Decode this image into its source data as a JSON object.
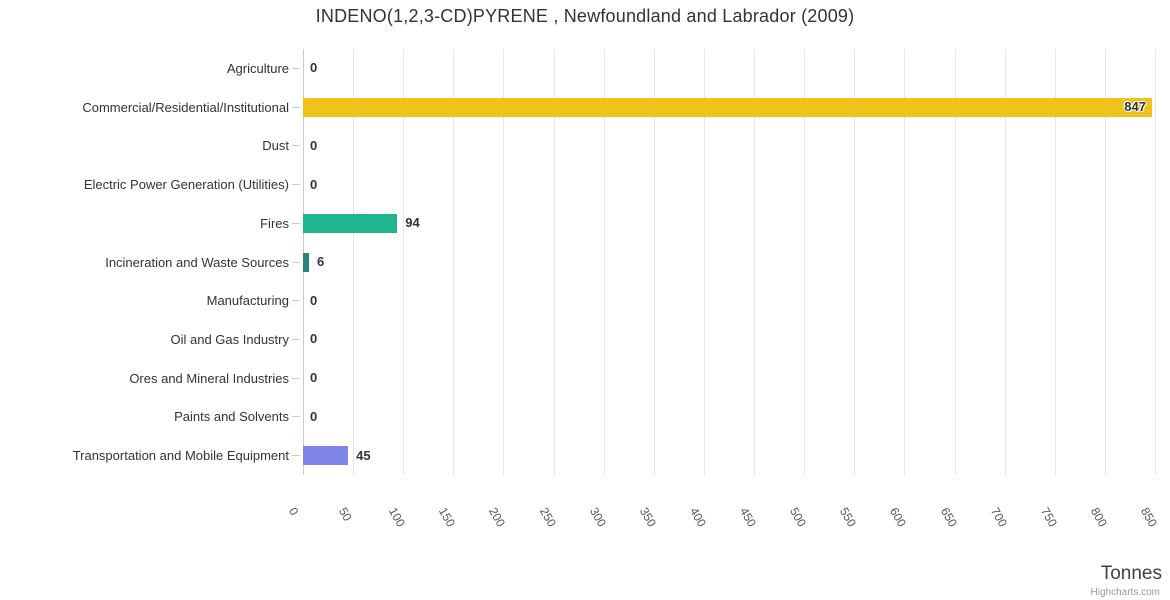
{
  "credits": "Highcharts.com",
  "chart_data": {
    "type": "bar",
    "orientation": "horizontal",
    "title": "INDENO(1,2,3-CD)PYRENE , Newfoundland and Labrador (2009)",
    "xlabel": "Tonnes",
    "xlim": [
      0,
      850
    ],
    "x_ticks": [
      0,
      50,
      100,
      150,
      200,
      250,
      300,
      350,
      400,
      450,
      500,
      550,
      600,
      650,
      700,
      750,
      800,
      850
    ],
    "grid": true,
    "legend": false,
    "categories": [
      "Agriculture",
      "Commercial/Residential/Institutional",
      "Dust",
      "Electric Power Generation (Utilities)",
      "Fires",
      "Incineration and Waste Sources",
      "Manufacturing",
      "Oil and Gas Industry",
      "Ores and Mineral Industries",
      "Paints and Solvents",
      "Transportation and Mobile Equipment"
    ],
    "values": [
      0,
      847,
      0,
      0,
      94,
      6,
      0,
      0,
      0,
      0,
      45
    ],
    "data_labels": [
      "0",
      "847",
      "0",
      "0",
      "94",
      "6",
      "0",
      "0",
      "0",
      "0",
      "45"
    ],
    "bar_colors": [
      null,
      "#eec31c",
      null,
      null,
      "#1fb58e",
      "#27837f",
      null,
      null,
      null,
      null,
      "#8085e9"
    ],
    "colors": {
      "grid": "#e6e6ee",
      "axis": "#c9cad6",
      "label_text": "#333333",
      "tick_text": "#555555"
    }
  }
}
